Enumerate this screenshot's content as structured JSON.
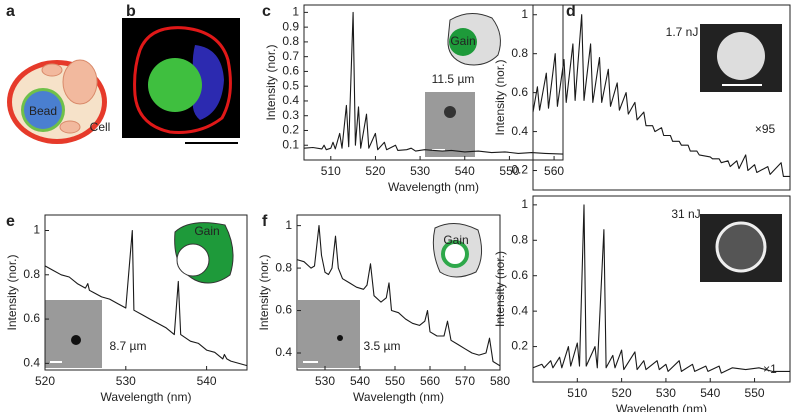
{
  "panel_labels": [
    "a",
    "b",
    "c",
    "d",
    "e",
    "f"
  ],
  "schematic": {
    "bead": "Bead",
    "cell": "Cell"
  },
  "chart_data": [
    {
      "type": "line",
      "ylabel": "Intensity (nor.)",
      "xlabel": "Wavelength (nm)",
      "annotations": [
        "Gain",
        "11.5 µm"
      ],
      "xlim": [
        504,
        562
      ],
      "ylim": [
        0,
        1.05
      ],
      "xticks": [
        510,
        520,
        530,
        540,
        550,
        560
      ],
      "yticks": [
        0.1,
        0.2,
        0.3,
        0.4,
        0.5,
        0.6,
        0.7,
        0.8,
        0.9,
        1
      ],
      "x": [
        504,
        506,
        508,
        508.5,
        509,
        510,
        510.5,
        511,
        512,
        512.5,
        513.5,
        514,
        515,
        515.5,
        516.2,
        516.7,
        518,
        518.5,
        520,
        520.5,
        522,
        522.5,
        524.5,
        525,
        527,
        528,
        529,
        531,
        533,
        535,
        537,
        540,
        543,
        546,
        549,
        552,
        555,
        558,
        562
      ],
      "series": [
        {
          "color": "#1a1a1a",
          "values": [
            0.08,
            0.085,
            0.075,
            0.1,
            0.07,
            0.08,
            0.12,
            0.075,
            0.18,
            0.08,
            0.37,
            0.09,
            1.0,
            0.1,
            0.36,
            0.08,
            0.31,
            0.08,
            0.18,
            0.07,
            0.12,
            0.07,
            0.1,
            0.065,
            0.07,
            0.08,
            0.06,
            0.07,
            0.065,
            0.06,
            0.065,
            0.055,
            0.06,
            0.05,
            0.055,
            0.045,
            0.05,
            0.045,
            0.04
          ]
        }
      ]
    },
    {
      "type": "line",
      "ylabel": "Intensity (nor.)",
      "annotations": [
        "1.7 nJ",
        "×95"
      ],
      "xlim": [
        500,
        558
      ],
      "ylim": [
        0.1,
        1.05
      ],
      "yticks": [
        0.2,
        0.4,
        0.6,
        0.8,
        1
      ],
      "x": [
        500,
        501,
        501.5,
        503,
        503.5,
        505,
        505.5,
        507,
        507.5,
        509,
        509.5,
        511,
        511.5,
        513,
        513.5,
        515,
        515.5,
        517,
        517.5,
        519,
        519.5,
        521,
        521.5,
        523,
        523.5,
        525,
        525.5,
        527,
        527.5,
        529,
        529.5,
        531,
        531.5,
        533,
        533.5,
        535,
        535.5,
        537,
        537.5,
        540,
        540.5,
        542,
        542.5,
        544,
        544.5,
        546,
        546.5,
        548,
        548.5,
        550,
        550.5,
        553,
        553.5,
        556,
        556.5,
        558
      ],
      "series": [
        {
          "color": "#1a1a1a",
          "values": [
            0.5,
            0.63,
            0.51,
            0.7,
            0.52,
            0.8,
            0.53,
            0.77,
            0.55,
            0.85,
            0.56,
            1.0,
            0.56,
            0.85,
            0.55,
            0.78,
            0.55,
            0.72,
            0.53,
            0.65,
            0.51,
            0.6,
            0.49,
            0.55,
            0.46,
            0.5,
            0.43,
            0.43,
            0.4,
            0.42,
            0.38,
            0.38,
            0.35,
            0.35,
            0.33,
            0.33,
            0.3,
            0.3,
            0.28,
            0.27,
            0.26,
            0.26,
            0.24,
            0.25,
            0.22,
            0.25,
            0.21,
            0.28,
            0.2,
            0.23,
            0.19,
            0.22,
            0.18,
            0.24,
            0.17,
            0.17
          ]
        }
      ]
    },
    {
      "type": "line",
      "ylabel": "Intensity (nor.)",
      "xlabel": "Wavelength (nm)",
      "annotations": [
        "31 nJ",
        "×1"
      ],
      "xlim": [
        500,
        558
      ],
      "ylim": [
        0,
        1.05
      ],
      "xticks": [
        510,
        520,
        530,
        540,
        550
      ],
      "yticks": [
        0.2,
        0.4,
        0.6,
        0.8,
        1
      ],
      "x": [
        500,
        502,
        502.5,
        504,
        504.5,
        506,
        506.5,
        508,
        508.5,
        510,
        510.5,
        511.5,
        512,
        514,
        514.5,
        516,
        516.5,
        518,
        518.5,
        520,
        520.5,
        523,
        523.5,
        525,
        525.5,
        528,
        528.5,
        530,
        530.5,
        533,
        533.5,
        536,
        536.5,
        539,
        539.5,
        542,
        542.5,
        545,
        548,
        551,
        554,
        558
      ],
      "series": [
        {
          "color": "#1a1a1a",
          "values": [
            0.08,
            0.1,
            0.08,
            0.12,
            0.08,
            0.14,
            0.08,
            0.2,
            0.09,
            0.22,
            0.09,
            1.0,
            0.09,
            0.2,
            0.08,
            0.86,
            0.08,
            0.15,
            0.08,
            0.18,
            0.07,
            0.17,
            0.07,
            0.12,
            0.07,
            0.12,
            0.07,
            0.1,
            0.06,
            0.12,
            0.06,
            0.1,
            0.06,
            0.09,
            0.06,
            0.09,
            0.05,
            0.08,
            0.07,
            0.08,
            0.06,
            0.06
          ]
        }
      ]
    },
    {
      "type": "line",
      "ylabel": "Intensity (nor.)",
      "xlabel": "Wavelength (nm)",
      "annotations": [
        "Gain",
        "8.7 µm"
      ],
      "xlim": [
        520,
        545
      ],
      "ylim": [
        0.37,
        1.07
      ],
      "xticks": [
        520,
        530,
        540
      ],
      "yticks": [
        0.4,
        0.6,
        0.8,
        1
      ],
      "x": [
        520,
        521,
        522,
        523,
        524,
        525,
        525.3,
        525.5,
        526,
        527,
        528,
        529,
        530,
        530.8,
        531,
        532,
        533,
        534,
        535,
        536,
        536.5,
        536.8,
        538,
        539,
        540,
        541,
        542,
        542.2,
        542.5,
        543,
        544,
        545
      ],
      "series": [
        {
          "color": "#1a1a1a",
          "values": [
            0.84,
            0.82,
            0.8,
            0.79,
            0.76,
            0.74,
            0.76,
            0.73,
            0.72,
            0.7,
            0.69,
            0.67,
            0.65,
            1.0,
            0.64,
            0.62,
            0.6,
            0.58,
            0.56,
            0.53,
            0.77,
            0.53,
            0.5,
            0.49,
            0.46,
            0.45,
            0.42,
            0.44,
            0.42,
            0.41,
            0.4,
            0.39
          ]
        }
      ]
    },
    {
      "type": "line",
      "ylabel": "Intensity (nor.)",
      "xlabel": "Wavelength (nm)",
      "annotations": [
        "Gain",
        "3.5 µm"
      ],
      "xlim": [
        522,
        580
      ],
      "ylim": [
        0.32,
        1.05
      ],
      "xticks": [
        530,
        540,
        550,
        560,
        570,
        580
      ],
      "yticks": [
        0.4,
        0.6,
        0.8,
        1
      ],
      "x": [
        522,
        524,
        526,
        527,
        528.3,
        529,
        530,
        531,
        532,
        533,
        533.8,
        535,
        537,
        539,
        541,
        542,
        543,
        544,
        546,
        547.5,
        548.3,
        549,
        551,
        553,
        555,
        557,
        558.5,
        559.3,
        560,
        562,
        564,
        565,
        566,
        568,
        570,
        572,
        574,
        576,
        577,
        578,
        580
      ],
      "series": [
        {
          "color": "#1a1a1a",
          "values": [
            0.84,
            0.83,
            0.8,
            0.81,
            1.0,
            0.86,
            0.78,
            0.77,
            0.8,
            0.95,
            0.8,
            0.75,
            0.73,
            0.71,
            0.7,
            0.72,
            0.82,
            0.67,
            0.64,
            0.66,
            0.73,
            0.6,
            0.59,
            0.56,
            0.54,
            0.53,
            0.55,
            0.6,
            0.5,
            0.48,
            0.48,
            0.55,
            0.46,
            0.44,
            0.42,
            0.4,
            0.39,
            0.4,
            0.47,
            0.36,
            0.34
          ]
        }
      ]
    }
  ]
}
